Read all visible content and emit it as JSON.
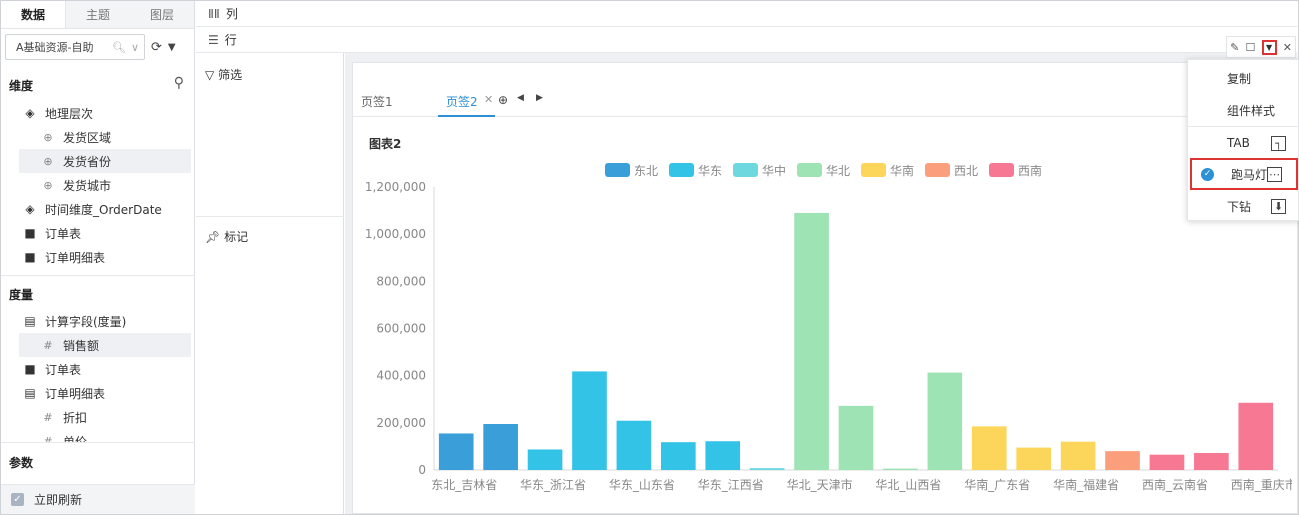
{
  "left_panel": {
    "tabs": [
      "数据",
      "主题",
      "图层"
    ],
    "datasource": "A基础资源-自助",
    "dimension_title": "维度",
    "dimensions": [
      {
        "label": "地理层次",
        "level": 1,
        "icon": "layers-icon"
      },
      {
        "label": "发货区域",
        "level": 2,
        "icon": "globe-icon"
      },
      {
        "label": "发货省份",
        "level": 2,
        "icon": "globe-icon"
      },
      {
        "label": "发货城市",
        "level": 2,
        "icon": "globe-icon"
      },
      {
        "label": "时间维度_OrderDate",
        "level": 1,
        "icon": "layers-icon"
      },
      {
        "label": "订单表",
        "level": 1,
        "icon": "folder-icon"
      },
      {
        "label": "订单明细表",
        "level": 1,
        "icon": "folder-icon"
      }
    ],
    "measure_title": "度量",
    "measures": [
      {
        "label": "计算字段(度量)",
        "level": 1,
        "icon": "folder-open-icon"
      },
      {
        "label": "销售额",
        "level": 2,
        "icon": "measure-icon"
      },
      {
        "label": "订单表",
        "level": 1,
        "icon": "folder-icon"
      },
      {
        "label": "订单明细表",
        "level": 1,
        "icon": "folder-open-icon"
      },
      {
        "label": "折扣",
        "level": 2,
        "icon": "hash-icon"
      },
      {
        "label": "单价",
        "level": 2,
        "icon": "hash-icon"
      }
    ],
    "param_title": "参数",
    "refresh_label": "立即刷新"
  },
  "middle_panel": {
    "columns_label": "列",
    "rows_label": "行",
    "filter_label": "筛选",
    "mark_label": "标记"
  },
  "widget": {
    "page_tabs": [
      "页签1",
      "页签2"
    ],
    "active_tab": "页签2",
    "chart_title": "图表2"
  },
  "context_menu": {
    "items": [
      "复制",
      "组件样式",
      "TAB",
      "跑马灯",
      "下钻"
    ],
    "checked": "跑马灯"
  },
  "chart_data": {
    "type": "bar",
    "legend": [
      "东北",
      "华东",
      "华中",
      "华北",
      "华南",
      "西北",
      "西南"
    ],
    "legend_colors": [
      "#3a9fd8",
      "#33c3e6",
      "#6dd9df",
      "#9ee3b4",
      "#fbd65a",
      "#fb9e7b",
      "#f67893"
    ],
    "ylim": [
      0,
      1200000
    ],
    "yticks": [
      "0",
      "200,000",
      "400,000",
      "600,000",
      "800,000",
      "1,000,000",
      "1,200,000"
    ],
    "bars": [
      {
        "region": "东北",
        "value": 155000
      },
      {
        "region": "东北",
        "value": 195000
      },
      {
        "region": "华东",
        "value": 87000
      },
      {
        "region": "华东",
        "value": 418000
      },
      {
        "region": "华东",
        "value": 209000
      },
      {
        "region": "华东",
        "value": 118000
      },
      {
        "region": "华东",
        "value": 122000
      },
      {
        "region": "华中",
        "value": 8000
      },
      {
        "region": "华北",
        "value": 1090000
      },
      {
        "region": "华北",
        "value": 272000
      },
      {
        "region": "华北",
        "value": 6000
      },
      {
        "region": "华北",
        "value": 413000
      },
      {
        "region": "华南",
        "value": 185000
      },
      {
        "region": "华南",
        "value": 95000
      },
      {
        "region": "华南",
        "value": 120000
      },
      {
        "region": "西北",
        "value": 80000
      },
      {
        "region": "西南",
        "value": 65000
      },
      {
        "region": "西南",
        "value": 72000
      },
      {
        "region": "西南",
        "value": 285000
      }
    ],
    "xticks": [
      {
        "label": "东北_吉林省",
        "at": 0
      },
      {
        "label": "华东_浙江省",
        "at": 2
      },
      {
        "label": "华东_山东省",
        "at": 4
      },
      {
        "label": "华东_江西省",
        "at": 6
      },
      {
        "label": "华北_天津市",
        "at": 8
      },
      {
        "label": "华北_山西省",
        "at": 10
      },
      {
        "label": "华南_广东省",
        "at": 12
      },
      {
        "label": "华南_福建省",
        "at": 14
      },
      {
        "label": "西南_云南省",
        "at": 16
      },
      {
        "label": "西南_重庆市",
        "at": 18
      }
    ]
  }
}
